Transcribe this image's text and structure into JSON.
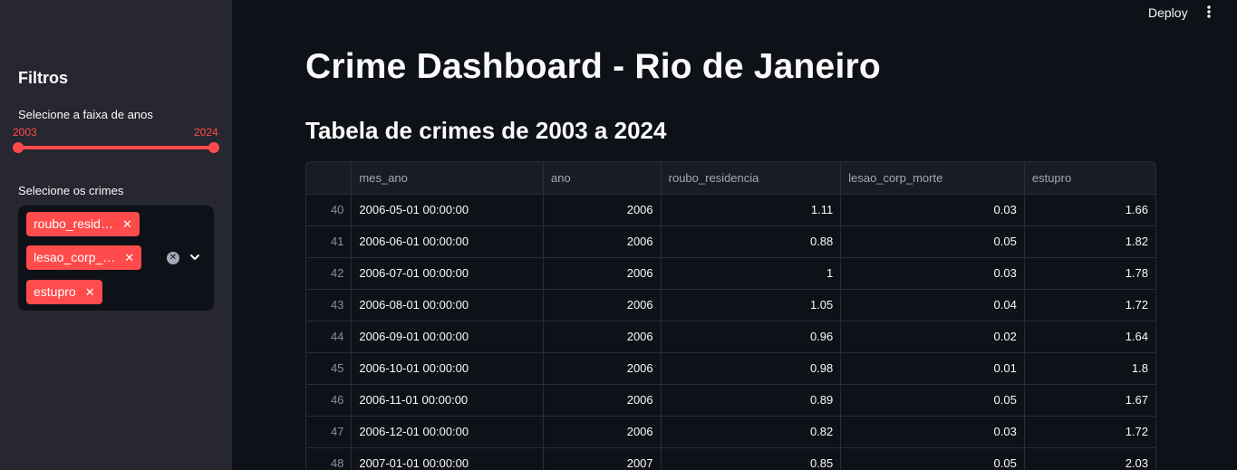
{
  "header": {
    "deploy_label": "Deploy",
    "menu_icon": "more-vertical-icon"
  },
  "sidebar": {
    "title": "Filtros",
    "years_label": "Selecione a faixa de anos",
    "years_min": "2003",
    "years_max": "2024",
    "crimes_label": "Selecione os crimes",
    "selected_crimes": [
      "roubo_resid…",
      "lesao_corp_…",
      "estupro"
    ],
    "accent_color": "#ff4b4b"
  },
  "main": {
    "title": "Crime Dashboard - Rio de Janeiro",
    "subtitle": "Tabela de crimes de 2003 a 2024"
  },
  "table": {
    "columns": [
      "",
      "mes_ano",
      "ano",
      "roubo_residencia",
      "lesao_corp_morte",
      "estupro"
    ],
    "rows": [
      [
        "40",
        "2006-05-01 00:00:00",
        "2006",
        "1.11",
        "0.03",
        "1.66"
      ],
      [
        "41",
        "2006-06-01 00:00:00",
        "2006",
        "0.88",
        "0.05",
        "1.82"
      ],
      [
        "42",
        "2006-07-01 00:00:00",
        "2006",
        "1",
        "0.03",
        "1.78"
      ],
      [
        "43",
        "2006-08-01 00:00:00",
        "2006",
        "1.05",
        "0.04",
        "1.72"
      ],
      [
        "44",
        "2006-09-01 00:00:00",
        "2006",
        "0.96",
        "0.02",
        "1.64"
      ],
      [
        "45",
        "2006-10-01 00:00:00",
        "2006",
        "0.98",
        "0.01",
        "1.8"
      ],
      [
        "46",
        "2006-11-01 00:00:00",
        "2006",
        "0.89",
        "0.05",
        "1.67"
      ],
      [
        "47",
        "2006-12-01 00:00:00",
        "2006",
        "0.82",
        "0.03",
        "1.72"
      ],
      [
        "48",
        "2007-01-01 00:00:00",
        "2007",
        "0.85",
        "0.05",
        "2.03"
      ]
    ]
  }
}
